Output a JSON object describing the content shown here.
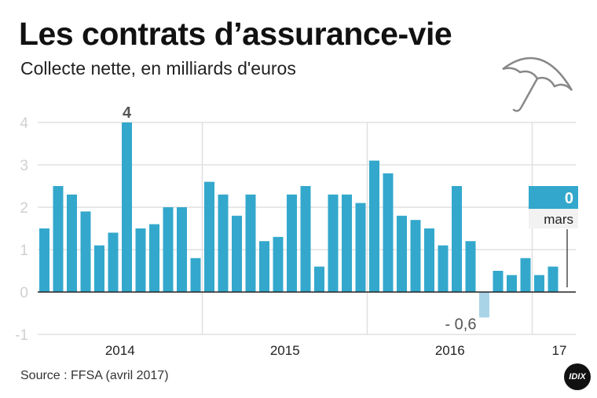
{
  "title": "Les contrats d’assurance-vie",
  "subtitle": "Collecte nette, en milliards d'euros",
  "source": "Source : FFSA (avril 2017)",
  "logo": "IDIX",
  "icons": [
    "umbrella-icon"
  ],
  "colors": {
    "bar": "#33a8cc",
    "negative_highlight": "#a9d4e8",
    "grid": "#e0e0e0",
    "axis": "#222222"
  },
  "chart_data": {
    "type": "bar",
    "title": "Les contrats d’assurance-vie",
    "subtitle": "Collecte nette, en milliards d'euros",
    "ylim": [
      -1,
      4
    ],
    "yticks": [
      -1,
      0,
      1,
      2,
      3,
      4
    ],
    "grid": true,
    "x_group_labels": [
      "2014",
      "2015",
      "2016",
      "17"
    ],
    "values": [
      1.5,
      2.5,
      2.3,
      1.9,
      1.1,
      1.4,
      4,
      1.5,
      1.6,
      2.0,
      2.0,
      0.8,
      2.6,
      2.3,
      1.8,
      2.3,
      1.2,
      1.3,
      2.3,
      2.5,
      0.6,
      2.3,
      2.3,
      2.1,
      3.1,
      2.8,
      1.8,
      1.7,
      1.5,
      1.1,
      2.5,
      1.2,
      -0.6,
      0.5,
      0.4,
      0.8,
      0.4,
      0.6,
      0
    ],
    "annotations": [
      {
        "index": 6,
        "text": "4"
      },
      {
        "index": 32,
        "text": "- 0,6"
      },
      {
        "index": 38,
        "text": "0",
        "label": "mars"
      }
    ]
  }
}
